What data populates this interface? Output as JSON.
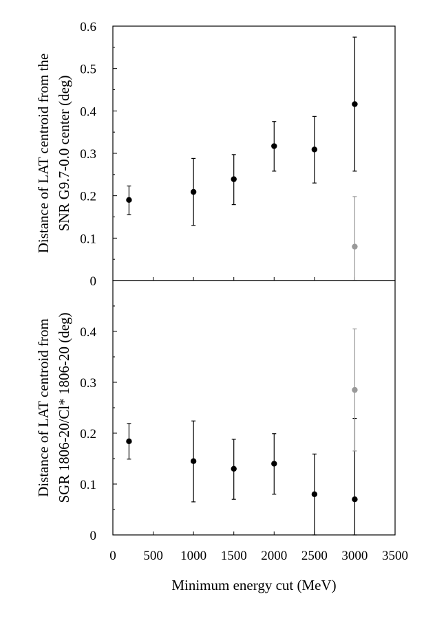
{
  "chart_data": [
    {
      "type": "scatter",
      "panel": "top",
      "ylabel_lines": [
        "Distance of LAT centroid from the",
        "SNR G9.7-0.0 center (deg)"
      ],
      "xlim": [
        0,
        3500
      ],
      "ylim": [
        0,
        0.6
      ],
      "y_ticks": [
        0,
        0.1,
        0.2,
        0.3,
        0.4,
        0.5,
        0.6
      ],
      "y_tick_labels": [
        "0",
        "0.1",
        "0.2",
        "0.3",
        "0.4",
        "0.5",
        "0.6"
      ],
      "error_bars": true,
      "series": [
        {
          "color": "#000000",
          "points": [
            {
              "x": 200,
              "y": 0.19,
              "lo": 0.155,
              "hi": 0.223
            },
            {
              "x": 1000,
              "y": 0.209,
              "lo": 0.13,
              "hi": 0.288
            },
            {
              "x": 1500,
              "y": 0.239,
              "lo": 0.179,
              "hi": 0.297
            },
            {
              "x": 2000,
              "y": 0.317,
              "lo": 0.258,
              "hi": 0.375
            },
            {
              "x": 2500,
              "y": 0.309,
              "lo": 0.23,
              "hi": 0.387
            },
            {
              "x": 3000,
              "y": 0.416,
              "lo": 0.258,
              "hi": 0.574
            }
          ]
        },
        {
          "color": "#999999",
          "points": [
            {
              "x": 3000,
              "y": 0.08,
              "lo": 0.0,
              "hi": 0.198
            }
          ]
        }
      ]
    },
    {
      "type": "scatter",
      "panel": "bottom",
      "ylabel_lines": [
        "Distance of LAT centroid from",
        "SGR 1806-20/Cl* 1806-20 (deg)"
      ],
      "xlabel": "Minimum energy cut (MeV)",
      "xlim": [
        0,
        3500
      ],
      "x_ticks": [
        0,
        500,
        1000,
        1500,
        2000,
        2500,
        3000,
        3500
      ],
      "x_tick_labels": [
        "0",
        "500",
        "1000",
        "1500",
        "2000",
        "2500",
        "3000",
        "3500"
      ],
      "ylim": [
        0,
        0.5
      ],
      "y_ticks": [
        0,
        0.1,
        0.2,
        0.3,
        0.4
      ],
      "y_tick_labels": [
        "0",
        "0.1",
        "0.2",
        "0.3",
        "0.4"
      ],
      "error_bars": true,
      "series": [
        {
          "color": "#000000",
          "points": [
            {
              "x": 200,
              "y": 0.184,
              "lo": 0.149,
              "hi": 0.219
            },
            {
              "x": 1000,
              "y": 0.145,
              "lo": 0.065,
              "hi": 0.224
            },
            {
              "x": 1500,
              "y": 0.13,
              "lo": 0.07,
              "hi": 0.188
            },
            {
              "x": 2000,
              "y": 0.14,
              "lo": 0.08,
              "hi": 0.199
            },
            {
              "x": 2500,
              "y": 0.08,
              "lo": 0.0,
              "hi": 0.159
            },
            {
              "x": 3000,
              "y": 0.07,
              "lo": 0.0,
              "hi": 0.229
            }
          ]
        },
        {
          "color": "#999999",
          "points": [
            {
              "x": 3000,
              "y": 0.285,
              "lo": 0.165,
              "hi": 0.405
            }
          ]
        }
      ]
    }
  ]
}
